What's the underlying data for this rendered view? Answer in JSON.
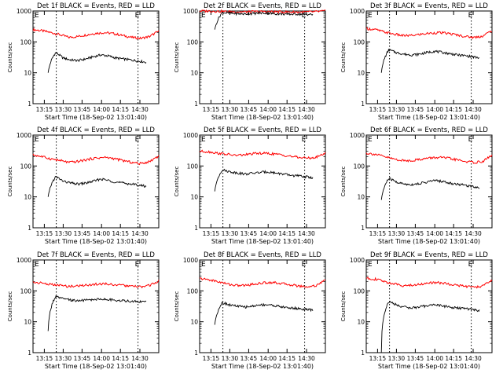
{
  "chart_data": [
    {
      "type": "line",
      "title": "Det 1f BLACK = Events, RED = LLD",
      "xlabel": "Start Time (18-Sep-02 13:01:40)",
      "ylabel": "Counts/sec",
      "xticks": [
        "13:15",
        "13:30",
        "13:45",
        "14:00",
        "14:15",
        "14:30"
      ],
      "yticks": [
        "1",
        "10",
        "100",
        "1000"
      ],
      "ylim": [
        1,
        1000
      ],
      "y_scale": "log",
      "markers": [
        "E",
        "E"
      ],
      "series": [
        {
          "color": "#ff0000",
          "values": [
            250,
            230,
            200,
            170,
            140,
            150,
            170,
            190,
            200,
            185,
            160,
            140,
            130,
            150,
            220
          ]
        },
        {
          "color": "#000000",
          "values": [
            10,
            45,
            30,
            26,
            25,
            28,
            33,
            38,
            35,
            30,
            28,
            26,
            24,
            22
          ]
        }
      ]
    },
    {
      "type": "line",
      "title": "Det 2f BLACK = Events, RED = LLD",
      "xlabel": "Start Time (18-Sep-02 13:01:40)",
      "ylabel": "Counts/sec",
      "xticks": [
        "13:15",
        "13:30",
        "13:45",
        "14:00",
        "14:15",
        "14:30"
      ],
      "yticks": [
        "1",
        "10",
        "100",
        "1000"
      ],
      "ylim": [
        1,
        1000
      ],
      "y_scale": "log",
      "markers": [
        "E",
        "E"
      ],
      "series": [
        {
          "color": "#ff0000",
          "values": [
            1000,
            1000,
            980,
            960,
            950,
            940,
            950,
            960,
            950,
            940,
            930,
            920,
            930,
            950,
            1000
          ]
        },
        {
          "color": "#000000",
          "values": [
            250,
            900,
            850,
            820,
            800,
            830,
            860,
            850,
            820,
            800,
            790,
            800,
            780,
            770
          ]
        }
      ]
    },
    {
      "type": "line",
      "title": "Det 3f BLACK = Events, RED = LLD",
      "xlabel": "Start Time (18-Sep-02 13:01:40)",
      "ylabel": "Counts/sec",
      "xticks": [
        "13:15",
        "13:30",
        "13:45",
        "14:00",
        "14:15",
        "14:30"
      ],
      "yticks": [
        "1",
        "10",
        "100",
        "1000"
      ],
      "ylim": [
        1,
        1000
      ],
      "y_scale": "log",
      "markers": [
        "E",
        "E"
      ],
      "series": [
        {
          "color": "#ff0000",
          "values": [
            270,
            250,
            210,
            180,
            160,
            160,
            175,
            190,
            200,
            190,
            170,
            150,
            140,
            155,
            230
          ]
        },
        {
          "color": "#000000",
          "values": [
            10,
            55,
            45,
            40,
            38,
            40,
            45,
            50,
            46,
            42,
            38,
            36,
            33,
            30
          ]
        }
      ]
    },
    {
      "type": "line",
      "title": "Det 4f BLACK = Events, RED = LLD",
      "xlabel": "Start Time (18-Sep-02 13:01:40)",
      "ylabel": "Counts/sec",
      "xticks": [
        "13:15",
        "13:30",
        "13:45",
        "14:00",
        "14:15",
        "14:30"
      ],
      "yticks": [
        "1",
        "10",
        "100",
        "1000"
      ],
      "ylim": [
        1,
        1000
      ],
      "y_scale": "log",
      "markers": [
        "E",
        "E"
      ],
      "series": [
        {
          "color": "#ff0000",
          "values": [
            230,
            200,
            170,
            150,
            130,
            140,
            160,
            180,
            190,
            175,
            150,
            130,
            120,
            140,
            210
          ]
        },
        {
          "color": "#000000",
          "values": [
            10,
            45,
            32,
            28,
            26,
            28,
            32,
            38,
            34,
            30,
            28,
            26,
            24,
            22
          ]
        }
      ]
    },
    {
      "type": "line",
      "title": "Det 5f BLACK = Events, RED = LLD",
      "xlabel": "Start Time (18-Sep-02 13:01:40)",
      "ylabel": "Counts/sec",
      "xticks": [
        "13:15",
        "13:30",
        "13:45",
        "14:00",
        "14:15",
        "14:30"
      ],
      "yticks": [
        "1",
        "10",
        "100",
        "1000"
      ],
      "ylim": [
        1,
        1000
      ],
      "y_scale": "log",
      "markers": [
        "E",
        "E"
      ],
      "series": [
        {
          "color": "#ff0000",
          "values": [
            300,
            290,
            260,
            240,
            220,
            230,
            250,
            260,
            250,
            230,
            210,
            190,
            180,
            190,
            260
          ]
        },
        {
          "color": "#000000",
          "values": [
            15,
            75,
            65,
            60,
            55,
            58,
            62,
            65,
            60,
            55,
            50,
            48,
            45,
            42
          ]
        }
      ]
    },
    {
      "type": "line",
      "title": "Det 6f BLACK = Events, RED = LLD",
      "xlabel": "Start Time (18-Sep-02 13:01:40)",
      "ylabel": "Counts/sec",
      "xticks": [
        "13:15",
        "13:30",
        "13:45",
        "14:00",
        "14:15",
        "14:30"
      ],
      "yticks": [
        "1",
        "10",
        "100",
        "1000"
      ],
      "ylim": [
        1,
        1000
      ],
      "y_scale": "log",
      "markers": [
        "E",
        "E"
      ],
      "series": [
        {
          "color": "#ff0000",
          "values": [
            260,
            240,
            200,
            170,
            150,
            150,
            165,
            180,
            190,
            180,
            160,
            140,
            130,
            140,
            220
          ]
        },
        {
          "color": "#000000",
          "values": [
            8,
            40,
            30,
            26,
            25,
            27,
            30,
            34,
            32,
            28,
            26,
            24,
            22,
            20
          ]
        }
      ]
    },
    {
      "type": "line",
      "title": "Det 7f BLACK = Events, RED = LLD",
      "xlabel": "Start Time (18-Sep-02 13:01:40)",
      "ylabel": "Counts/sec",
      "xticks": [
        "13:15",
        "13:30",
        "13:45",
        "14:00",
        "14:15",
        "14:30"
      ],
      "yticks": [
        "1",
        "10",
        "100",
        "1000"
      ],
      "ylim": [
        1,
        1000
      ],
      "y_scale": "log",
      "markers": [
        "E",
        "E"
      ],
      "series": [
        {
          "color": "#ff0000",
          "values": [
            190,
            180,
            160,
            150,
            140,
            145,
            155,
            165,
            170,
            160,
            150,
            140,
            135,
            150,
            210
          ]
        },
        {
          "color": "#000000",
          "values": [
            5,
            65,
            55,
            50,
            48,
            50,
            52,
            55,
            52,
            50,
            48,
            46,
            45,
            44
          ]
        }
      ]
    },
    {
      "type": "line",
      "title": "Det 8f BLACK = Events, RED = LLD",
      "xlabel": "Start Time (18-Sep-02 13:01:40)",
      "ylabel": "Counts/sec",
      "xticks": [
        "13:15",
        "13:30",
        "13:45",
        "14:00",
        "14:15",
        "14:30"
      ],
      "yticks": [
        "1",
        "10",
        "100",
        "1000"
      ],
      "ylim": [
        1,
        1000
      ],
      "y_scale": "log",
      "markers": [
        "E",
        "E"
      ],
      "series": [
        {
          "color": "#ff0000",
          "values": [
            250,
            230,
            200,
            170,
            150,
            150,
            165,
            180,
            190,
            175,
            160,
            145,
            135,
            150,
            220
          ]
        },
        {
          "color": "#000000",
          "values": [
            8,
            42,
            35,
            32,
            30,
            32,
            35,
            36,
            33,
            30,
            28,
            27,
            25,
            24
          ]
        }
      ]
    },
    {
      "type": "line",
      "title": "Det 9f BLACK = Events, RED = LLD",
      "xlabel": "Start Time (18-Sep-02 13:01:40)",
      "ylabel": "Counts/sec",
      "xticks": [
        "13:15",
        "13:30",
        "13:45",
        "14:00",
        "14:15",
        "14:30"
      ],
      "yticks": [
        "1",
        "10",
        "100",
        "1000"
      ],
      "ylim": [
        1,
        1000
      ],
      "y_scale": "log",
      "markers": [
        "E",
        "E"
      ],
      "series": [
        {
          "color": "#ff0000",
          "values": [
            260,
            240,
            200,
            170,
            150,
            150,
            165,
            180,
            185,
            170,
            155,
            140,
            130,
            145,
            215
          ]
        },
        {
          "color": "#000000",
          "values": [
            1,
            45,
            35,
            30,
            28,
            30,
            33,
            36,
            33,
            30,
            28,
            27,
            25,
            23
          ]
        }
      ]
    }
  ]
}
